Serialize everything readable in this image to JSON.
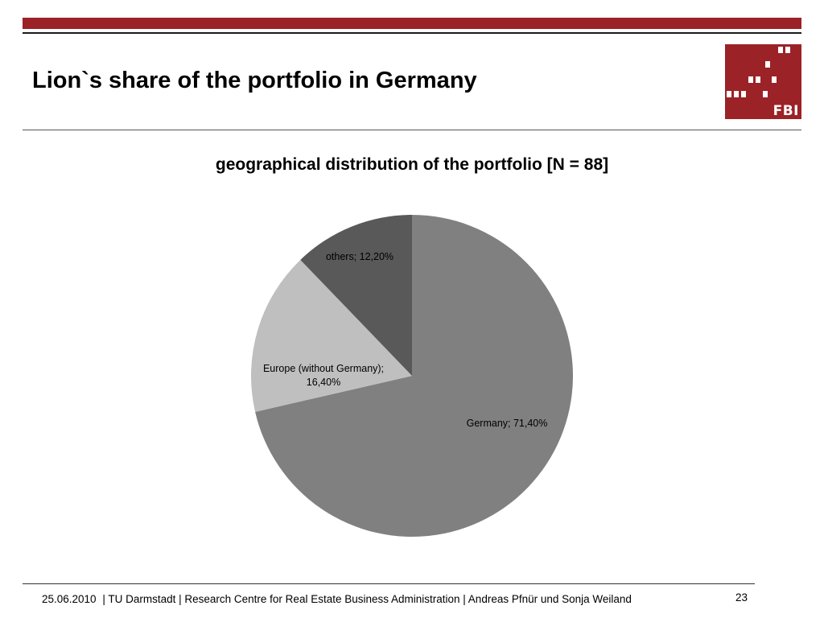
{
  "slide": {
    "title": "Lion`s share of the portfolio in Germany",
    "logo_text": "FBI"
  },
  "colors": {
    "brand": "#9b2226",
    "germany": "#808080",
    "europe": "#bfbfbf",
    "others": "#595959"
  },
  "chart_data": {
    "type": "pie",
    "title": "geographical distribution of the portfolio [N = 88]",
    "slices": [
      {
        "category": "Germany",
        "value": 71.4,
        "label": "Germany; 71,40%"
      },
      {
        "category": "Europe (without Germany)",
        "value": 16.4,
        "label_lines": [
          "Europe (without Germany);",
          "16,40%"
        ]
      },
      {
        "category": "others",
        "value": 12.2,
        "label": "others; 12,20%"
      }
    ]
  },
  "footer": {
    "date": "25.06.2010",
    "text": "| TU Darmstadt | Research Centre for Real Estate Business Administration |  Andreas Pfnür und Sonja Weiland",
    "page": "23"
  }
}
